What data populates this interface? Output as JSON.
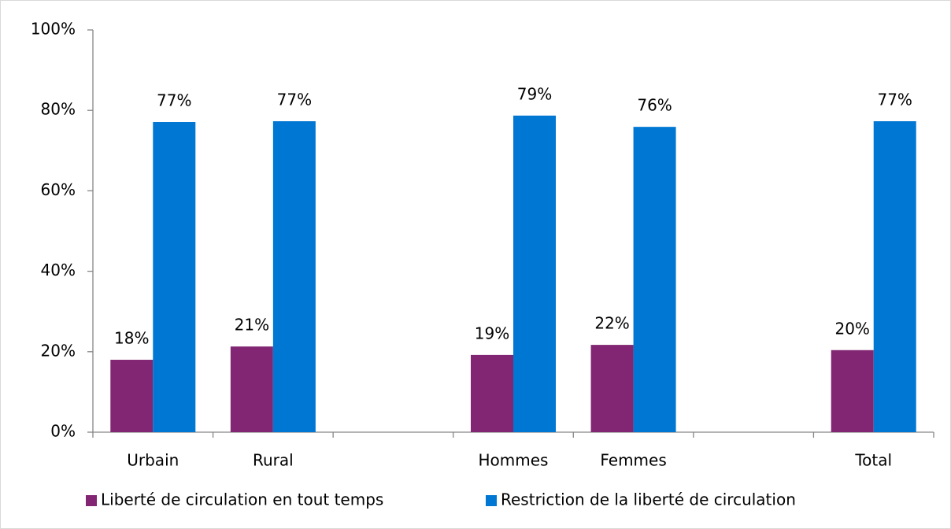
{
  "chart_data": {
    "type": "bar",
    "categories": [
      "Urbain",
      "Rural",
      null,
      "Hommes",
      "Femmes",
      null,
      "Total"
    ],
    "series": [
      {
        "name": "Liberté de circulation en tout temps",
        "color": "#822673",
        "values": [
          18.0,
          21.3,
          null,
          19.2,
          21.7,
          null,
          20.4
        ],
        "value_labels": [
          "18%",
          "21%",
          null,
          "19%",
          "22%",
          null,
          "20%"
        ]
      },
      {
        "name": "Restriction de la liberté de circulation",
        "color": "#0077d3",
        "values": [
          77.1,
          77.3,
          null,
          78.7,
          75.9,
          null,
          77.3
        ],
        "value_labels": [
          "77%",
          "77%",
          null,
          "79%",
          "76%",
          null,
          "77%"
        ]
      }
    ],
    "ylim": [
      0,
      100
    ],
    "yticks": [
      {
        "value": 0,
        "label": "0%"
      },
      {
        "value": 20,
        "label": "20%"
      },
      {
        "value": 40,
        "label": "40%"
      },
      {
        "value": 60,
        "label": "60%"
      },
      {
        "value": 80,
        "label": "80%"
      },
      {
        "value": 100,
        "label": "100%"
      }
    ],
    "grid": false,
    "legend": "bottom"
  }
}
